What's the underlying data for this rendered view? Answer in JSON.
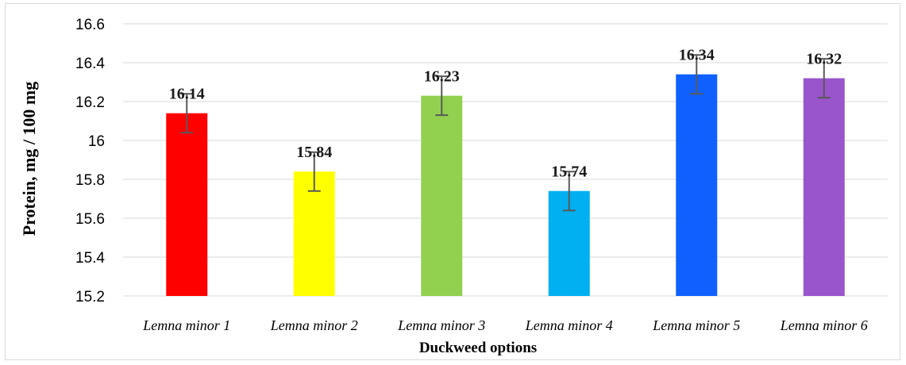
{
  "chart_data": {
    "type": "bar",
    "categories": [
      "Lemna minor 1",
      "Lemna minor 2",
      "Lemna minor 3",
      "Lemna minor 4",
      "Lemna minor 5",
      "Lemna minor 6"
    ],
    "values": [
      16.14,
      15.84,
      16.23,
      15.74,
      16.34,
      16.32
    ],
    "data_labels": [
      "16.14",
      "15.84",
      "16.23",
      "15.74",
      "16.34",
      "16.32"
    ],
    "error": [
      0.1,
      0.1,
      0.1,
      0.1,
      0.1,
      0.1
    ],
    "colors": [
      "#ff0000",
      "#ffff00",
      "#92d050",
      "#00b0f0",
      "#0f60ff",
      "#9955cc"
    ],
    "ylim": [
      15.2,
      16.6
    ],
    "yticks": [
      "15.2",
      "15.4",
      "15.6",
      "15.8",
      "16",
      "16.2",
      "16.4",
      "16.6"
    ],
    "ytick_values": [
      15.2,
      15.4,
      15.6,
      15.8,
      16.0,
      16.2,
      16.4,
      16.6
    ],
    "xlabel": "Duckweed options",
    "ylabel": "Protein, mg / 100 mg",
    "grid": true,
    "legend": "none"
  }
}
